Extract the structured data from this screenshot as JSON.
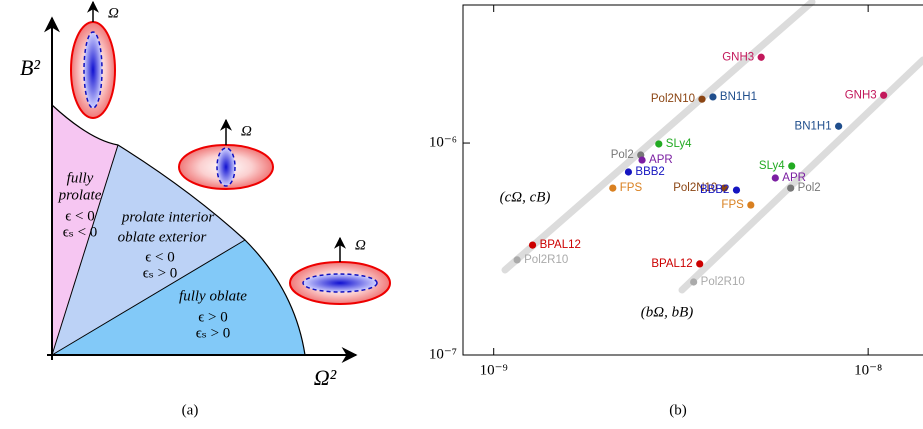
{
  "diagram": {
    "axis_labels": {
      "y": "B²",
      "x": "Ω²"
    },
    "rotation_labels": [
      "Ω",
      "Ω",
      "Ω"
    ],
    "regions": [
      {
        "lines": [
          "fully",
          "prolate",
          "ϵ < 0",
          "ϵₛ < 0"
        ]
      },
      {
        "lines": [
          "prolate interior",
          "oblate exterior",
          "ϵ < 0",
          "ϵₛ > 0"
        ]
      },
      {
        "lines": [
          "fully oblate",
          "ϵ > 0",
          "ϵₛ > 0"
        ]
      }
    ],
    "caption": "(a)"
  },
  "chart_data": {
    "type": "scatter",
    "caption": "(b)",
    "xscale": "log",
    "yscale": "log",
    "xlim": [
      8.28e-10,
      1.49e-08
    ],
    "ylim": [
      1e-07,
      4.48e-06
    ],
    "xticks": [
      {
        "value": 1e-09,
        "label": "10⁻⁹"
      },
      {
        "value": 1e-08,
        "label": "10⁻⁸"
      }
    ],
    "yticks": [
      {
        "value": 1e-07,
        "label": "10⁻⁷"
      },
      {
        "value": 1e-06,
        "label": "10⁻⁶"
      }
    ],
    "series": [
      {
        "name": "(cΩ, cB)",
        "labels": [
          "GNH3",
          "BN1H1",
          "Pol2N10",
          "SLy4",
          "Pol2",
          "APR",
          "BBB2",
          "FPS",
          "BPAL12",
          "Pol2R10"
        ],
        "colors": [
          "#c2185b",
          "#1f4e8c",
          "#8b4513",
          "#22aa22",
          "#777777",
          "#7b1fa2",
          "#1515c0",
          "#d98020",
          "#cc0000",
          "#aaaaaa"
        ],
        "x": [
          5.18e-09,
          3.85e-09,
          3.6e-09,
          2.76e-09,
          2.47e-09,
          2.49e-09,
          2.29e-09,
          2.08e-09,
          1.27e-09,
          1.155e-09
        ],
        "values": [
          2.54e-06,
          1.65e-06,
          1.61e-06,
          9.9e-07,
          8.78e-07,
          8.31e-07,
          7.3e-07,
          6.13e-07,
          3.3e-07,
          2.81e-07
        ]
      },
      {
        "name": "(bΩ, bB)",
        "labels": [
          "GNH3",
          "BN1H1",
          "SLy4",
          "APR",
          "Pol2",
          "Pol2N10",
          "BBB2",
          "FPS",
          "BPAL12",
          "Pol2R10"
        ],
        "colors": [
          "#c2185b",
          "#1f4e8c",
          "#22aa22",
          "#7b1fa2",
          "#777777",
          "#8b4513",
          "#1515c0",
          "#d98020",
          "#cc0000",
          "#aaaaaa"
        ],
        "x": [
          1.1e-08,
          8.34e-09,
          6.25e-09,
          5.65e-09,
          6.21e-09,
          4.13e-09,
          4.45e-09,
          4.86e-09,
          3.55e-09,
          3.42e-09
        ],
        "values": [
          1.68e-06,
          1.2e-06,
          7.79e-07,
          6.84e-07,
          6.13e-07,
          6.13e-07,
          6e-07,
          5.1e-07,
          2.69e-07,
          2.21e-07
        ]
      }
    ]
  }
}
